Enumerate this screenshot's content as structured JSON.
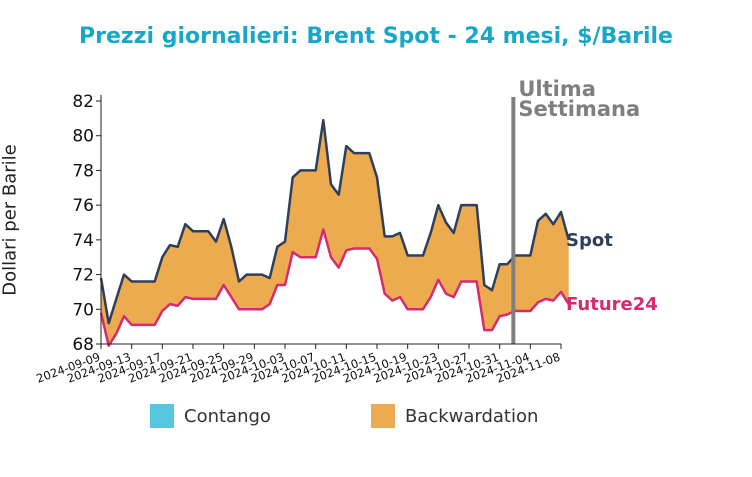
{
  "chart_data": {
    "type": "area",
    "title": "Prezzi giornalieri: Brent Spot - 24 mesi, $/Barile",
    "ylabel": "Dollari per Barile",
    "xlabel": "",
    "ylim": [
      68,
      82
    ],
    "yticks": [
      68,
      70,
      72,
      74,
      76,
      78,
      80,
      82
    ],
    "x_start": "2024-09-09",
    "x_end": "2024-11-08",
    "xtick_labels": [
      "2024-09-09",
      "2024-09-13",
      "2024-09-17",
      "2024-09-21",
      "2024-09-25",
      "2024-09-29",
      "2024-10-03",
      "2024-10-07",
      "2024-10-11",
      "2024-10-15",
      "2024-10-19",
      "2024-10-23",
      "2024-10-27",
      "2024-10-31",
      "2024-11-04",
      "2024-11-08"
    ],
    "series": [
      {
        "name": "Spot",
        "color": "#2e3f5c",
        "points": [
          [
            "2024-09-09",
            71.8
          ],
          [
            "2024-09-10",
            69.2
          ],
          [
            "2024-09-11",
            70.6
          ],
          [
            "2024-09-12",
            72.0
          ],
          [
            "2024-09-13",
            71.6
          ],
          [
            "2024-09-16",
            71.6
          ],
          [
            "2024-09-17",
            73.0
          ],
          [
            "2024-09-18",
            73.7
          ],
          [
            "2024-09-19",
            73.6
          ],
          [
            "2024-09-20",
            74.9
          ],
          [
            "2024-09-21",
            74.5
          ],
          [
            "2024-09-23",
            74.5
          ],
          [
            "2024-09-24",
            73.9
          ],
          [
            "2024-09-25",
            75.2
          ],
          [
            "2024-09-26",
            73.6
          ],
          [
            "2024-09-27",
            71.6
          ],
          [
            "2024-09-28",
            72.0
          ],
          [
            "2024-09-30",
            72.0
          ],
          [
            "2024-10-01",
            71.8
          ],
          [
            "2024-10-02",
            73.6
          ],
          [
            "2024-10-03",
            73.9
          ],
          [
            "2024-10-04",
            77.6
          ],
          [
            "2024-10-05",
            78.0
          ],
          [
            "2024-10-07",
            78.0
          ],
          [
            "2024-10-08",
            80.9
          ],
          [
            "2024-10-09",
            77.2
          ],
          [
            "2024-10-10",
            76.6
          ],
          [
            "2024-10-11",
            79.4
          ],
          [
            "2024-10-12",
            79.0
          ],
          [
            "2024-10-14",
            79.0
          ],
          [
            "2024-10-15",
            77.6
          ],
          [
            "2024-10-16",
            74.2
          ],
          [
            "2024-10-17",
            74.2
          ],
          [
            "2024-10-18",
            74.4
          ],
          [
            "2024-10-19",
            73.1
          ],
          [
            "2024-10-21",
            73.1
          ],
          [
            "2024-10-22",
            74.4
          ],
          [
            "2024-10-23",
            76.0
          ],
          [
            "2024-10-24",
            75.0
          ],
          [
            "2024-10-25",
            74.4
          ],
          [
            "2024-10-26",
            76.0
          ],
          [
            "2024-10-28",
            76.0
          ],
          [
            "2024-10-29",
            71.4
          ],
          [
            "2024-10-30",
            71.1
          ],
          [
            "2024-10-31",
            72.6
          ],
          [
            "2024-11-01",
            72.6
          ],
          [
            "2024-11-02",
            73.1
          ],
          [
            "2024-11-03",
            73.1
          ],
          [
            "2024-11-04",
            73.1
          ],
          [
            "2024-11-05",
            75.1
          ],
          [
            "2024-11-06",
            75.5
          ],
          [
            "2024-11-07",
            74.9
          ],
          [
            "2024-11-08",
            75.6
          ],
          [
            "2024-11-09",
            74.0
          ]
        ]
      },
      {
        "name": "Future24",
        "color": "#d62a73",
        "points": [
          [
            "2024-09-09",
            69.8
          ],
          [
            "2024-09-10",
            67.9
          ],
          [
            "2024-09-11",
            68.6
          ],
          [
            "2024-09-12",
            69.6
          ],
          [
            "2024-09-13",
            69.1
          ],
          [
            "2024-09-16",
            69.1
          ],
          [
            "2024-09-17",
            69.9
          ],
          [
            "2024-09-18",
            70.3
          ],
          [
            "2024-09-19",
            70.2
          ],
          [
            "2024-09-20",
            70.7
          ],
          [
            "2024-09-21",
            70.6
          ],
          [
            "2024-09-23",
            70.6
          ],
          [
            "2024-09-24",
            70.6
          ],
          [
            "2024-09-25",
            71.4
          ],
          [
            "2024-09-26",
            70.7
          ],
          [
            "2024-09-27",
            70.0
          ],
          [
            "2024-09-28",
            70.0
          ],
          [
            "2024-09-30",
            70.0
          ],
          [
            "2024-10-01",
            70.3
          ],
          [
            "2024-10-02",
            71.4
          ],
          [
            "2024-10-03",
            71.4
          ],
          [
            "2024-10-04",
            73.3
          ],
          [
            "2024-10-05",
            73.0
          ],
          [
            "2024-10-07",
            73.0
          ],
          [
            "2024-10-08",
            74.6
          ],
          [
            "2024-10-09",
            73.0
          ],
          [
            "2024-10-10",
            72.4
          ],
          [
            "2024-10-11",
            73.4
          ],
          [
            "2024-10-12",
            73.5
          ],
          [
            "2024-10-14",
            73.5
          ],
          [
            "2024-10-15",
            72.9
          ],
          [
            "2024-10-16",
            70.9
          ],
          [
            "2024-10-17",
            70.5
          ],
          [
            "2024-10-18",
            70.7
          ],
          [
            "2024-10-19",
            70.0
          ],
          [
            "2024-10-21",
            70.0
          ],
          [
            "2024-10-22",
            70.7
          ],
          [
            "2024-10-23",
            71.7
          ],
          [
            "2024-10-24",
            70.9
          ],
          [
            "2024-10-25",
            70.7
          ],
          [
            "2024-10-26",
            71.6
          ],
          [
            "2024-10-28",
            71.6
          ],
          [
            "2024-10-29",
            68.8
          ],
          [
            "2024-10-30",
            68.8
          ],
          [
            "2024-10-31",
            69.6
          ],
          [
            "2024-11-01",
            69.7
          ],
          [
            "2024-11-02",
            69.9
          ],
          [
            "2024-11-03",
            69.9
          ],
          [
            "2024-11-04",
            69.9
          ],
          [
            "2024-11-05",
            70.4
          ],
          [
            "2024-11-06",
            70.6
          ],
          [
            "2024-11-07",
            70.5
          ],
          [
            "2024-11-08",
            71.0
          ],
          [
            "2024-11-09",
            70.3
          ]
        ]
      }
    ],
    "fill": {
      "backwardation_color": "#ecab4f",
      "contango_color": "#56c7de"
    },
    "vline": {
      "date": "2024-11-01",
      "label_line1": "Ultima",
      "label_line2": "Settimana",
      "color": "#7f7f7f"
    },
    "legend": {
      "placement": "bottom",
      "items": [
        {
          "label": "Contango",
          "color": "#56c7de"
        },
        {
          "label": "Backwardation",
          "color": "#ecab4f"
        }
      ]
    },
    "grid": false
  }
}
